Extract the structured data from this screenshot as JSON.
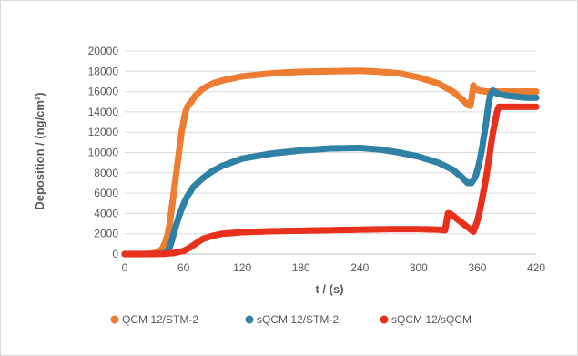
{
  "chart_data": {
    "type": "scatter",
    "title": "",
    "xlabel": "t / (s)",
    "ylabel": "Deposition / (ng/cm²)",
    "xlim": [
      0,
      420
    ],
    "ylim": [
      0,
      20000
    ],
    "x_ticks": [
      0,
      60,
      120,
      180,
      240,
      300,
      360,
      420
    ],
    "y_ticks": [
      0,
      2000,
      4000,
      6000,
      8000,
      10000,
      12000,
      14000,
      16000,
      18000,
      20000
    ],
    "grid": "horizontal",
    "legend_position": "bottom",
    "series": [
      {
        "name": "QCM 12/STM-2",
        "color": "#ed7d31",
        "points": [
          [
            0,
            0
          ],
          [
            10,
            0
          ],
          [
            20,
            0
          ],
          [
            28,
            50
          ],
          [
            34,
            200
          ],
          [
            38,
            500
          ],
          [
            41,
            1000
          ],
          [
            44,
            2000
          ],
          [
            46,
            3000
          ],
          [
            48,
            4500
          ],
          [
            50,
            6000
          ],
          [
            52,
            7500
          ],
          [
            54,
            9000
          ],
          [
            56,
            10500
          ],
          [
            58,
            12000
          ],
          [
            60,
            13000
          ],
          [
            62,
            14000
          ],
          [
            64,
            14500
          ],
          [
            66,
            14800
          ],
          [
            68,
            15000
          ],
          [
            72,
            15600
          ],
          [
            80,
            16300
          ],
          [
            90,
            16800
          ],
          [
            100,
            17100
          ],
          [
            120,
            17500
          ],
          [
            150,
            17800
          ],
          [
            180,
            17950
          ],
          [
            210,
            18000
          ],
          [
            240,
            18050
          ],
          [
            260,
            17950
          ],
          [
            280,
            17800
          ],
          [
            300,
            17400
          ],
          [
            320,
            16800
          ],
          [
            335,
            16000
          ],
          [
            345,
            15200
          ],
          [
            350,
            14700
          ],
          [
            353,
            14600
          ],
          [
            356,
            16600
          ],
          [
            358,
            16300
          ],
          [
            362,
            16100
          ],
          [
            370,
            16000
          ],
          [
            380,
            16000
          ],
          [
            400,
            16000
          ],
          [
            420,
            16000
          ]
        ]
      },
      {
        "name": "sQCM 12/STM-2",
        "color": "#2f82a6",
        "points": [
          [
            0,
            0
          ],
          [
            20,
            0
          ],
          [
            30,
            0
          ],
          [
            40,
            50
          ],
          [
            44,
            300
          ],
          [
            46,
            700
          ],
          [
            48,
            1300
          ],
          [
            50,
            2000
          ],
          [
            52,
            2700
          ],
          [
            54,
            3300
          ],
          [
            56,
            3900
          ],
          [
            58,
            4400
          ],
          [
            60,
            4900
          ],
          [
            62,
            5300
          ],
          [
            64,
            5700
          ],
          [
            66,
            6000
          ],
          [
            70,
            6600
          ],
          [
            80,
            7500
          ],
          [
            90,
            8200
          ],
          [
            100,
            8700
          ],
          [
            120,
            9400
          ],
          [
            150,
            9900
          ],
          [
            180,
            10200
          ],
          [
            210,
            10400
          ],
          [
            240,
            10450
          ],
          [
            260,
            10300
          ],
          [
            280,
            10000
          ],
          [
            300,
            9600
          ],
          [
            320,
            9000
          ],
          [
            335,
            8300
          ],
          [
            345,
            7500
          ],
          [
            350,
            7000
          ],
          [
            354,
            7000
          ],
          [
            358,
            7600
          ],
          [
            361,
            8600
          ],
          [
            363,
            9500
          ],
          [
            365,
            10500
          ],
          [
            367,
            11800
          ],
          [
            369,
            13000
          ],
          [
            371,
            14500
          ],
          [
            373,
            15600
          ],
          [
            376,
            16100
          ],
          [
            380,
            15800
          ],
          [
            390,
            15600
          ],
          [
            400,
            15500
          ],
          [
            410,
            15400
          ],
          [
            420,
            15400
          ]
        ]
      },
      {
        "name": "sQCM 12/sQCM",
        "color": "#e8301c",
        "points": [
          [
            0,
            0
          ],
          [
            20,
            0
          ],
          [
            40,
            20
          ],
          [
            50,
            100
          ],
          [
            60,
            300
          ],
          [
            66,
            600
          ],
          [
            72,
            1000
          ],
          [
            80,
            1500
          ],
          [
            90,
            1800
          ],
          [
            100,
            2000
          ],
          [
            120,
            2150
          ],
          [
            150,
            2250
          ],
          [
            180,
            2300
          ],
          [
            210,
            2350
          ],
          [
            240,
            2400
          ],
          [
            270,
            2450
          ],
          [
            300,
            2450
          ],
          [
            320,
            2400
          ],
          [
            327,
            2350
          ],
          [
            330,
            4000
          ],
          [
            332,
            4000
          ],
          [
            356,
            2200
          ],
          [
            358,
            2700
          ],
          [
            360,
            3300
          ],
          [
            362,
            4000
          ],
          [
            364,
            5000
          ],
          [
            366,
            6000
          ],
          [
            368,
            7000
          ],
          [
            370,
            8200
          ],
          [
            372,
            9500
          ],
          [
            374,
            10800
          ],
          [
            376,
            12000
          ],
          [
            378,
            13000
          ],
          [
            380,
            14000
          ],
          [
            382,
            14500
          ],
          [
            390,
            14500
          ],
          [
            400,
            14500
          ],
          [
            410,
            14500
          ],
          [
            420,
            14500
          ]
        ]
      }
    ]
  }
}
